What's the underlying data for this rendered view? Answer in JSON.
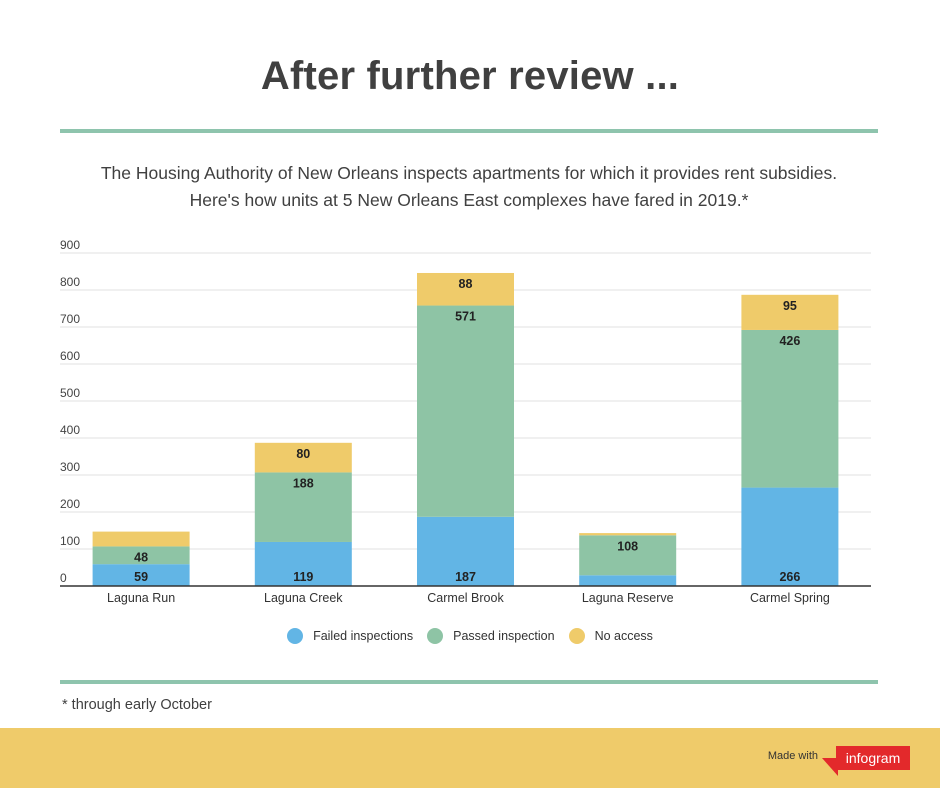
{
  "title": "After further review ...",
  "subtitle": {
    "line1": "The Housing Authority of New Orleans inspects apartments for which it provides rent subsidies.",
    "line2": "Here's how units at 5 New Orleans East complexes have fared in 2019.*"
  },
  "footnote": "* through early October",
  "footer": {
    "made_with": "Made with",
    "brand": "infogram"
  },
  "colors": {
    "accent_rule": "#8ec4ad",
    "footer_bg": "#efcb6a",
    "brand_red": "#e3292b"
  },
  "chart_data": {
    "type": "bar",
    "stacked": true,
    "categories": [
      "Laguna Run",
      "Laguna Creek",
      "Carmel Brook",
      "Laguna Reserve",
      "Carmel Spring"
    ],
    "series": [
      {
        "name": "Failed inspections",
        "color": "#62b5e5",
        "values": [
          59,
          119,
          187,
          29,
          266
        ],
        "labels": [
          "59",
          "119",
          "187",
          "",
          "266"
        ]
      },
      {
        "name": "Passed inspection",
        "color": "#8ec4a5",
        "values": [
          48,
          188,
          571,
          108,
          426
        ],
        "labels": [
          "48",
          "188",
          "571",
          "108",
          "426"
        ]
      },
      {
        "name": "No access",
        "color": "#efcb6a",
        "values": [
          40,
          80,
          88,
          6,
          95
        ],
        "labels": [
          "",
          "80",
          "88",
          "",
          "95"
        ]
      }
    ],
    "y_ticks": [
      "0",
      "100",
      "200",
      "300",
      "400",
      "500",
      "600",
      "700",
      "800",
      "900"
    ],
    "ylim": [
      0,
      900
    ],
    "grid": true,
    "legend_position": "bottom-center"
  }
}
